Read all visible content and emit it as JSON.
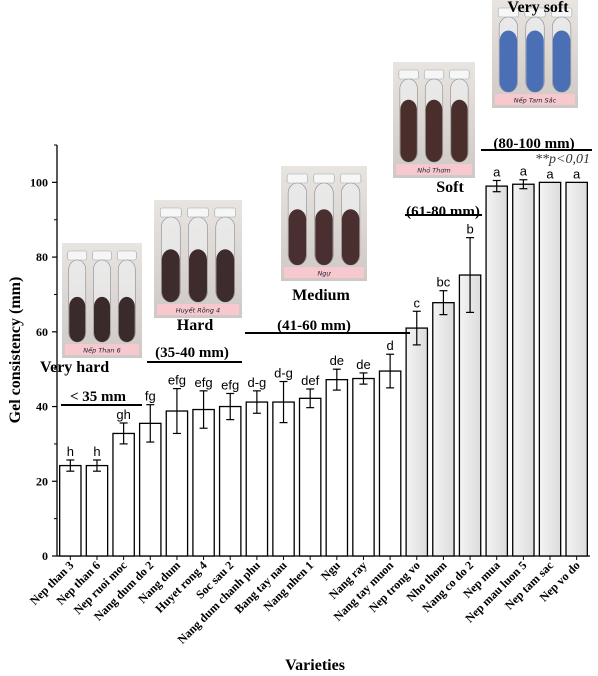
{
  "chart_data": {
    "type": "bar",
    "xlabel": "Varieties",
    "ylabel": "Gel consistency (mm)",
    "ylim": [
      0,
      110
    ],
    "yticks": [
      0,
      20,
      40,
      60,
      80,
      100
    ],
    "grid": false,
    "categories": [
      "Nep than 3",
      "Nep than 6",
      "Nep ruoi moc",
      "Nang dum do 2",
      "Nang dum",
      "Huyet rong 4",
      "Soc sau 2",
      "Nang dum chanh phu",
      "Bang tay nau",
      "Nang nhen 1",
      "Ngu",
      "Nang ray",
      "Nang tay muon",
      "Nep trong vo",
      "Nho thom",
      "Nang co do 2",
      "Nep mua",
      "Nep mau luon 5",
      "Nep tam sac",
      "Nep vo do"
    ],
    "values": [
      24.2,
      24.2,
      32.8,
      35.5,
      38.8,
      39.2,
      40.0,
      41.2,
      41.2,
      42.2,
      47.2,
      47.5,
      49.5,
      61.0,
      67.8,
      75.2,
      99.0,
      99.5,
      100.0,
      100.0
    ],
    "errors": [
      1.5,
      1.5,
      2.8,
      5.0,
      6.0,
      5.0,
      3.5,
      3.0,
      5.5,
      2.5,
      2.8,
      1.5,
      4.5,
      4.5,
      3.2,
      10.0,
      1.5,
      1.2,
      0,
      0
    ],
    "significance": [
      "h",
      "h",
      "gh",
      "fg",
      "efg",
      "efg",
      "efg",
      "d-g",
      "d-g",
      "def",
      "de",
      "de",
      "d",
      "c",
      "bc",
      "b",
      "a",
      "a",
      "a",
      "a"
    ],
    "shaded": [
      false,
      false,
      false,
      false,
      false,
      false,
      false,
      false,
      false,
      false,
      false,
      false,
      false,
      true,
      true,
      true,
      true,
      true,
      true,
      true
    ],
    "groups": [
      {
        "name": "Very hard",
        "range": "< 35 mm",
        "from": 0,
        "to": 1
      },
      {
        "name": "Hard",
        "range": "(35-40 mm)",
        "from": 3,
        "to": 6
      },
      {
        "name": "Medium",
        "range": "(41-60 mm)",
        "from": 7,
        "to": 12
      },
      {
        "name": "Soft",
        "range": "(61-80 mm)",
        "from": 13,
        "to": 15
      },
      {
        "name": "Very soft",
        "range": "(80-100 mm)",
        "from": 16,
        "to": 19
      }
    ],
    "annotation": "**p<0,01",
    "photo_labels": [
      "Nếp Than 6",
      "Huyết Rồng 4",
      "Ngự",
      "Nhỏ Thơm",
      "Nếp Tam Sắc"
    ],
    "colors": {
      "bar_fill": "#ffffff",
      "bar_shaded": "#ebebeb",
      "axis": "#000000"
    }
  }
}
